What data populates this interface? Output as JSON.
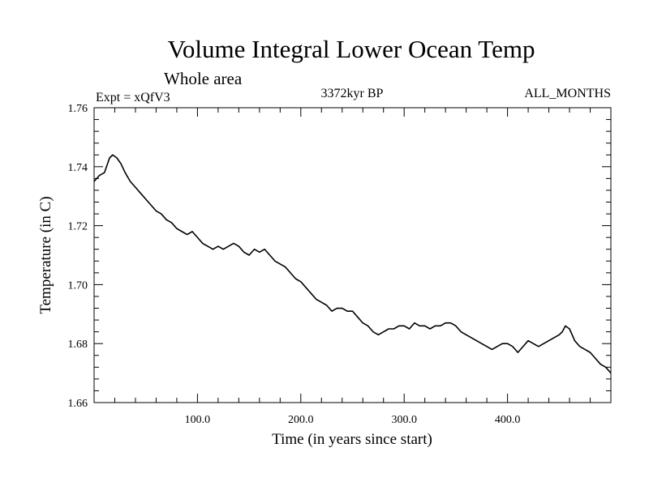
{
  "chart_data": {
    "type": "line",
    "title": "Volume Integral Lower Ocean Temp",
    "subtitle": "Whole area",
    "experiment": "Expt = xQfV3",
    "period": "3372kyr BP",
    "months": "ALL_MONTHS",
    "xlabel": "Time (in years since start)",
    "ylabel": "Temperature (in C)",
    "xlim": [
      0,
      500
    ],
    "ylim": [
      1.66,
      1.76
    ],
    "grid": false,
    "legend": "none",
    "x_tick_values": [
      100,
      200,
      300,
      400
    ],
    "x_tick_labels": [
      "100.0",
      "200.0",
      "300.0",
      "400.0"
    ],
    "y_tick_values": [
      1.66,
      1.68,
      1.7,
      1.72,
      1.74,
      1.76
    ],
    "y_tick_labels": [
      "1.66",
      "1.68",
      "1.70",
      "1.72",
      "1.74",
      "1.76"
    ],
    "series": [
      {
        "name": "Volume integral lower ocean temperature",
        "x": [
          0,
          5,
          10,
          15,
          18,
          22,
          26,
          30,
          35,
          40,
          45,
          50,
          55,
          60,
          65,
          70,
          75,
          80,
          85,
          90,
          95,
          100,
          105,
          110,
          115,
          120,
          125,
          130,
          135,
          140,
          145,
          150,
          155,
          160,
          165,
          170,
          175,
          180,
          185,
          190,
          195,
          200,
          205,
          210,
          215,
          220,
          225,
          230,
          235,
          240,
          245,
          250,
          255,
          260,
          265,
          270,
          275,
          280,
          285,
          290,
          295,
          300,
          305,
          310,
          315,
          320,
          325,
          330,
          335,
          340,
          345,
          350,
          355,
          360,
          365,
          370,
          375,
          380,
          385,
          390,
          395,
          400,
          405,
          410,
          415,
          420,
          425,
          430,
          435,
          440,
          445,
          450,
          453,
          456,
          460,
          465,
          470,
          475,
          480,
          485,
          490,
          495,
          500
        ],
        "values": [
          1.735,
          1.737,
          1.738,
          1.743,
          1.744,
          1.743,
          1.741,
          1.738,
          1.735,
          1.733,
          1.731,
          1.729,
          1.727,
          1.725,
          1.724,
          1.722,
          1.721,
          1.719,
          1.718,
          1.717,
          1.718,
          1.716,
          1.714,
          1.713,
          1.712,
          1.713,
          1.712,
          1.713,
          1.714,
          1.713,
          1.711,
          1.71,
          1.712,
          1.711,
          1.712,
          1.71,
          1.708,
          1.707,
          1.706,
          1.704,
          1.702,
          1.701,
          1.699,
          1.697,
          1.695,
          1.694,
          1.693,
          1.691,
          1.692,
          1.692,
          1.691,
          1.691,
          1.689,
          1.687,
          1.686,
          1.684,
          1.683,
          1.684,
          1.685,
          1.685,
          1.686,
          1.686,
          1.685,
          1.687,
          1.686,
          1.686,
          1.685,
          1.686,
          1.686,
          1.687,
          1.687,
          1.686,
          1.684,
          1.683,
          1.682,
          1.681,
          1.68,
          1.679,
          1.678,
          1.679,
          1.68,
          1.68,
          1.679,
          1.677,
          1.679,
          1.681,
          1.68,
          1.679,
          1.68,
          1.681,
          1.682,
          1.683,
          1.684,
          1.686,
          1.685,
          1.681,
          1.679,
          1.678,
          1.677,
          1.675,
          1.673,
          1.672,
          1.67
        ]
      }
    ]
  }
}
